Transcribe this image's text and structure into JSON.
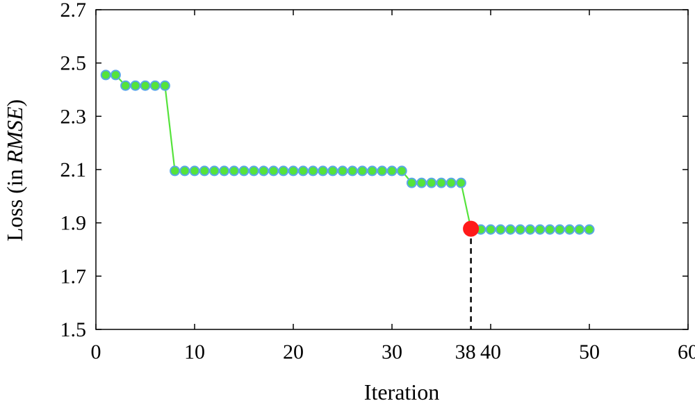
{
  "chart_data": {
    "type": "line",
    "title": "",
    "xlabel": "Iteration",
    "ylabel_parts": [
      "Loss (in ",
      "RMSE",
      ")"
    ],
    "xlim": [
      0,
      60
    ],
    "ylim": [
      1.5,
      2.7
    ],
    "xticks": [
      0,
      10,
      20,
      30,
      40,
      50,
      60
    ],
    "yticks": [
      1.5,
      1.7,
      1.9,
      2.1,
      2.3,
      2.5,
      2.7
    ],
    "extra_xtick_label": "38",
    "grid": false,
    "series": [
      {
        "x": [
          1,
          2,
          3,
          4,
          5,
          6,
          7,
          8,
          9,
          10,
          11,
          12,
          13,
          14,
          15,
          16,
          17,
          18,
          19,
          20,
          21,
          22,
          23,
          24,
          25,
          26,
          27,
          28,
          29,
          30,
          31,
          32,
          33,
          34,
          35,
          36,
          37,
          38,
          39,
          40,
          41,
          42,
          43,
          44,
          45,
          46,
          47,
          48,
          49,
          50
        ],
        "y": [
          2.455,
          2.455,
          2.415,
          2.415,
          2.415,
          2.415,
          2.415,
          2.095,
          2.095,
          2.095,
          2.095,
          2.095,
          2.095,
          2.095,
          2.095,
          2.095,
          2.095,
          2.095,
          2.095,
          2.095,
          2.095,
          2.095,
          2.095,
          2.095,
          2.095,
          2.095,
          2.095,
          2.095,
          2.095,
          2.095,
          2.095,
          2.05,
          2.05,
          2.05,
          2.05,
          2.05,
          2.05,
          1.878,
          1.875,
          1.875,
          1.875,
          1.875,
          1.875,
          1.875,
          1.875,
          1.875,
          1.875,
          1.875,
          1.875,
          1.875
        ]
      }
    ],
    "highlight": {
      "x": 38,
      "y": 1.878
    },
    "colors": {
      "line": "#55e33b",
      "marker_fill": "#55e33b",
      "marker_edge": "#5aa7e6",
      "highlight": "#ff1a1a",
      "axis": "#000000"
    }
  }
}
